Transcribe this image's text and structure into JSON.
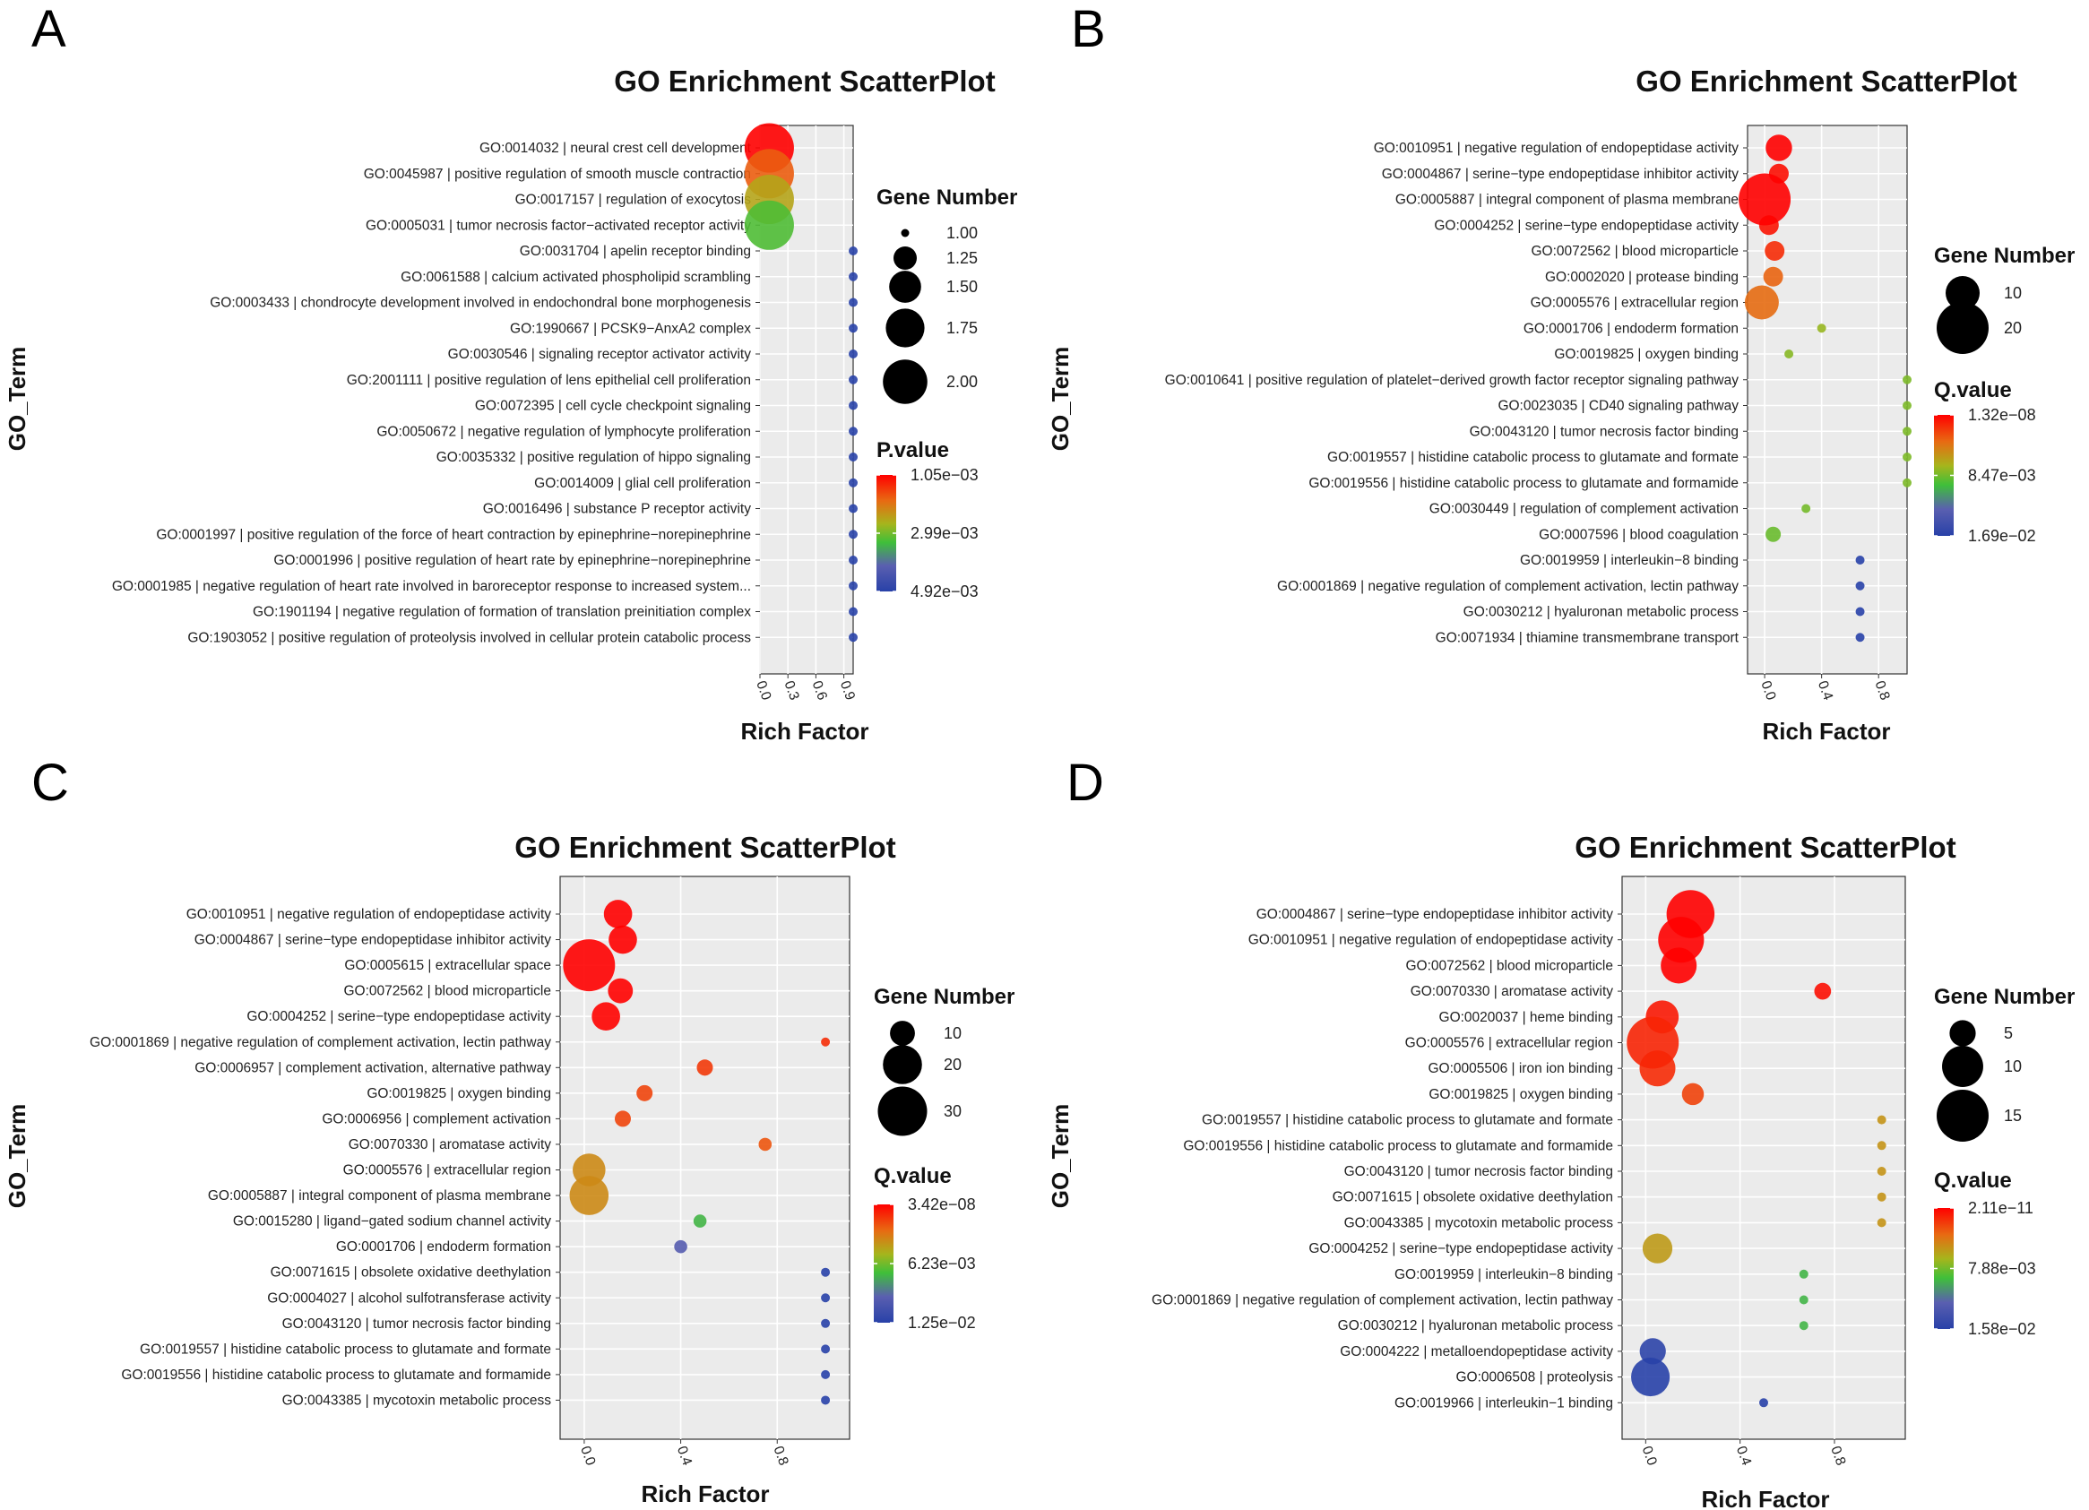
{
  "chart_data": [
    {
      "panel_label": "A",
      "type": "scatter",
      "title": "GO Enrichment ScatterPlot",
      "xlabel": "Rich Factor",
      "ylabel": "GO_Term",
      "xlim": [
        0.0,
        1.0
      ],
      "x_ticks": [
        "0.0",
        "0.3",
        "0.6",
        "0.9"
      ],
      "x_tick_values": [
        0.0,
        0.3,
        0.6,
        0.9
      ],
      "terms": [
        "GO:0014032 | neural crest cell development",
        "GO:0045987 | positive regulation of smooth muscle contraction",
        "GO:0017157 | regulation of exocytosis",
        "GO:0005031 | tumor necrosis factor−activated receptor activity",
        "GO:0031704 | apelin receptor binding",
        "GO:0061588 | calcium activated phospholipid scrambling",
        "GO:0003433 | chondrocyte development involved in endochondral bone morphogenesis",
        "GO:1990667 | PCSK9−AnxA2 complex",
        "GO:0030546 | signaling receptor activator activity",
        "GO:2001111 | positive regulation of lens epithelial cell proliferation",
        "GO:0072395 | cell cycle checkpoint signaling",
        "GO:0050672 | negative regulation of lymphocyte proliferation",
        "GO:0035332 | positive regulation of hippo signaling",
        "GO:0014009 | glial cell proliferation",
        "GO:0016496 | substance P receptor activity",
        "GO:0001997 | positive regulation of the force of heart contraction by epinephrine−norepinephrine",
        "GO:0001996 | positive regulation of heart rate by epinephrine−norepinephrine",
        "GO:0001985 | negative regulation of heart rate involved in baroreceptor response to increased system...",
        "GO:1901194 | negative regulation of formation of translation preinitiation complex",
        "GO:1903052 | positive regulation of proteolysis involved in cellular protein catabolic process"
      ],
      "rich_factor": [
        0.1,
        0.1,
        0.1,
        0.1,
        1.0,
        1.0,
        1.0,
        1.0,
        1.0,
        1.0,
        1.0,
        1.0,
        1.0,
        1.0,
        1.0,
        1.0,
        1.0,
        1.0,
        1.0,
        1.0
      ],
      "gene_number": [
        2,
        2,
        2,
        2,
        1,
        1,
        1,
        1,
        1,
        1,
        1,
        1,
        1,
        1,
        1,
        1,
        1,
        1,
        1,
        1
      ],
      "color_value": [
        0.00105,
        0.0018,
        0.0025,
        0.0032,
        0.0049,
        0.0049,
        0.0049,
        0.0049,
        0.0049,
        0.0049,
        0.0049,
        0.0049,
        0.0049,
        0.0049,
        0.0049,
        0.0049,
        0.0049,
        0.0049,
        0.0049,
        0.0049
      ],
      "color_range": [
        0.00105,
        0.00492
      ],
      "size_legend": {
        "title": "Gene Number",
        "labels": [
          "1.00",
          "1.25",
          "1.50",
          "1.75",
          "2.00"
        ],
        "values": [
          1.0,
          1.25,
          1.5,
          1.75,
          2.0
        ]
      },
      "color_legend": {
        "title": "P.value",
        "labels": [
          "1.05e−03",
          "2.99e−03",
          "4.92e−03"
        ]
      }
    },
    {
      "panel_label": "B",
      "type": "scatter",
      "title": "GO Enrichment ScatterPlot",
      "xlabel": "Rich Factor",
      "ylabel": "GO_Term",
      "xlim": [
        -0.12,
        1.0
      ],
      "x_ticks": [
        "0.0",
        "0.4",
        "0.8"
      ],
      "x_tick_values": [
        0.0,
        0.4,
        0.8
      ],
      "terms": [
        "GO:0010951 | negative regulation of endopeptidase activity",
        "GO:0004867 | serine−type endopeptidase inhibitor activity",
        "GO:0005887 | integral component of plasma membrane",
        "GO:0004252 | serine−type endopeptidase activity",
        "GO:0072562 | blood microparticle",
        "GO:0002020 | protease binding",
        "GO:0005576 | extracellular region",
        "GO:0001706 | endoderm formation",
        "GO:0019825 | oxygen binding",
        "GO:0010641 | positive regulation of platelet−derived growth factor receptor signaling pathway",
        "GO:0023035 | CD40 signaling pathway",
        "GO:0043120 | tumor necrosis factor binding",
        "GO:0019557 | histidine catabolic process to glutamate and formate",
        "GO:0019556 | histidine catabolic process to glutamate and formamide",
        "GO:0030449 | regulation of complement activation",
        "GO:0007596 | blood coagulation",
        "GO:0019959 | interleukin−8 binding",
        "GO:0001869 | negative regulation of complement activation, lectin pathway",
        "GO:0030212 | hyaluronan metabolic process",
        "GO:0071934 | thiamine transmembrane transport"
      ],
      "rich_factor": [
        0.1,
        0.1,
        0.0,
        0.03,
        0.07,
        0.06,
        -0.02,
        0.4,
        0.17,
        1.0,
        1.0,
        1.0,
        1.0,
        1.0,
        0.29,
        0.06,
        0.67,
        0.67,
        0.67,
        0.67
      ],
      "gene_number": [
        7,
        5,
        20,
        5,
        5,
        5,
        10,
        3,
        3,
        3,
        3,
        3,
        3,
        3,
        3,
        4,
        3,
        3,
        3,
        3
      ],
      "color_value": [
        1.32e-08,
        0.0005,
        1.32e-08,
        0.0007,
        0.0015,
        0.0035,
        0.0038,
        0.0075,
        0.0079,
        0.0082,
        0.0082,
        0.0082,
        0.0082,
        0.0082,
        0.0084,
        0.0087,
        0.0169,
        0.0169,
        0.0169,
        0.0169
      ],
      "color_range": [
        1.32e-08,
        0.0169
      ],
      "size_legend": {
        "title": "Gene Number",
        "labels": [
          "10",
          "20"
        ],
        "values": [
          10,
          20
        ]
      },
      "color_legend": {
        "title": "Q.value",
        "labels": [
          "1.32e−08",
          "8.47e−03",
          "1.69e−02"
        ]
      }
    },
    {
      "panel_label": "C",
      "type": "scatter",
      "title": "GO Enrichment ScatterPlot",
      "xlabel": "Rich Factor",
      "ylabel": "GO_Term",
      "xlim": [
        -0.1,
        1.1
      ],
      "x_ticks": [
        "0.0",
        "0.4",
        "0.8"
      ],
      "x_tick_values": [
        0.0,
        0.4,
        0.8
      ],
      "terms": [
        "GO:0010951 | negative regulation of endopeptidase activity",
        "GO:0004867 | serine−type endopeptidase inhibitor activity",
        "GO:0005615 | extracellular space",
        "GO:0072562 | blood microparticle",
        "GO:0004252 | serine−type endopeptidase activity",
        "GO:0001869 | negative regulation of complement activation, lectin pathway",
        "GO:0006957 | complement activation, alternative pathway",
        "GO:0019825 | oxygen binding",
        "GO:0006956 | complement activation",
        "GO:0070330 | aromatase activity",
        "GO:0005576 | extracellular region",
        "GO:0005887 | integral component of plasma membrane",
        "GO:0015280 | ligand−gated sodium channel activity",
        "GO:0001706 | endoderm formation",
        "GO:0071615 | obsolete oxidative deethylation",
        "GO:0004027 | alcohol sulfotransferase activity",
        "GO:0043120 | tumor necrosis factor binding",
        "GO:0019557 | histidine catabolic process to glutamate and formate",
        "GO:0019556 | histidine catabolic process to glutamate and formamide",
        "GO:0043385 | mycotoxin metabolic process"
      ],
      "rich_factor": [
        0.14,
        0.16,
        0.02,
        0.15,
        0.09,
        1.0,
        0.5,
        0.25,
        0.16,
        0.75,
        0.02,
        0.02,
        0.48,
        0.4,
        1.0,
        1.0,
        1.0,
        1.0,
        1.0,
        1.0
      ],
      "gene_number": [
        12,
        12,
        33,
        10,
        12,
        4,
        6,
        6,
        6,
        5,
        15,
        20,
        5,
        5,
        4,
        4,
        4,
        4,
        4,
        4
      ],
      "color_value": [
        3.42e-08,
        1e-07,
        1e-06,
        2e-05,
        5e-05,
        0.0012,
        0.0015,
        0.0018,
        0.0018,
        0.0022,
        0.0038,
        0.0038,
        0.0075,
        0.01,
        0.0125,
        0.0125,
        0.0125,
        0.0125,
        0.0125,
        0.0125
      ],
      "color_range": [
        3.42e-08,
        0.0125
      ],
      "size_legend": {
        "title": "Gene Number",
        "labels": [
          "10",
          "20",
          "30"
        ],
        "values": [
          10,
          20,
          30
        ]
      },
      "color_legend": {
        "title": "Q.value",
        "labels": [
          "3.42e−08",
          "6.23e−03",
          "1.25e−02"
        ]
      }
    },
    {
      "panel_label": "D",
      "type": "scatter",
      "title": "GO Enrichment ScatterPlot",
      "xlabel": "Rich Factor",
      "ylabel": "GO_Term",
      "xlim": [
        -0.1,
        1.1
      ],
      "x_ticks": [
        "0.0",
        "0.4",
        "0.8"
      ],
      "x_tick_values": [
        0.0,
        0.4,
        0.8
      ],
      "terms": [
        "GO:0004867 | serine−type endopeptidase inhibitor activity",
        "GO:0010951 | negative regulation of endopeptidase activity",
        "GO:0072562 | blood microparticle",
        "GO:0070330 | aromatase activity",
        "GO:0020037 | heme binding",
        "GO:0005576 | extracellular region",
        "GO:0005506 | iron ion binding",
        "GO:0019825 | oxygen binding",
        "GO:0019557 | histidine catabolic process to glutamate and formate",
        "GO:0019556 | histidine catabolic process to glutamate and formamide",
        "GO:0043120 | tumor necrosis factor binding",
        "GO:0071615 | obsolete oxidative deethylation",
        "GO:0043385 | mycotoxin metabolic process",
        "GO:0004252 | serine−type endopeptidase activity",
        "GO:0019959 | interleukin−8 binding",
        "GO:0001869 | negative regulation of complement activation, lectin pathway",
        "GO:0030212 | hyaluronan metabolic process",
        "GO:0004222 | metalloendopeptidase activity",
        "GO:0006508 | proteolysis",
        "GO:0019966 | interleukin−1 binding"
      ],
      "rich_factor": [
        0.19,
        0.15,
        0.14,
        0.75,
        0.07,
        0.03,
        0.05,
        0.2,
        1.0,
        1.0,
        1.0,
        1.0,
        1.0,
        0.05,
        0.67,
        0.67,
        0.67,
        0.03,
        0.02,
        0.5
      ],
      "gene_number": [
        13,
        12,
        8,
        3,
        7,
        15,
        8,
        4,
        2,
        2,
        2,
        2,
        2,
        6,
        2,
        2,
        2,
        5,
        9,
        2
      ],
      "color_value": [
        2.11e-11,
        1e-10,
        1e-09,
        0.0005,
        0.0008,
        0.0012,
        0.0014,
        0.0022,
        0.0052,
        0.0052,
        0.0052,
        0.0052,
        0.0052,
        0.0055,
        0.0095,
        0.0095,
        0.0095,
        0.0155,
        0.0158,
        0.0158
      ],
      "color_range": [
        2.11e-11,
        0.0158
      ],
      "size_legend": {
        "title": "Gene Number",
        "labels": [
          "5",
          "10",
          "15"
        ],
        "values": [
          5,
          10,
          15
        ]
      },
      "color_legend": {
        "title": "Q.value",
        "labels": [
          "2.11e−11",
          "7.88e−03",
          "1.58e−02"
        ]
      }
    }
  ]
}
